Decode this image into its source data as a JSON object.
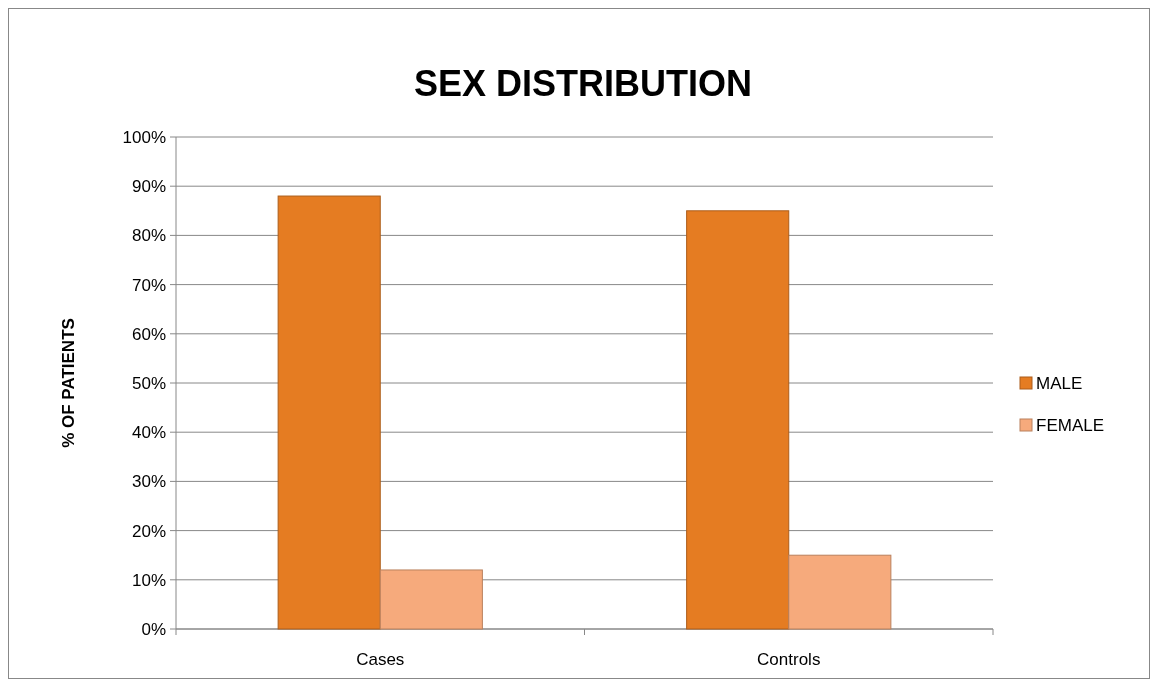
{
  "chart_data": {
    "type": "bar",
    "title": "SEX DISTRIBUTION",
    "ylabel": "% OF PATIENTS",
    "categories": [
      "Cases",
      "Controls"
    ],
    "series": [
      {
        "name": "MALE",
        "color": "#e57c22",
        "values": [
          88,
          85
        ]
      },
      {
        "name": "FEMALE",
        "color": "#f6aa7c",
        "values": [
          12,
          15
        ]
      }
    ],
    "ylim": [
      0,
      100
    ],
    "yticks": [
      {
        "value": 0,
        "label": "0%"
      },
      {
        "value": 10,
        "label": "10%"
      },
      {
        "value": 20,
        "label": "20%"
      },
      {
        "value": 30,
        "label": "30%"
      },
      {
        "value": 40,
        "label": "40%"
      },
      {
        "value": 50,
        "label": "50%"
      },
      {
        "value": 60,
        "label": "60%"
      },
      {
        "value": 70,
        "label": "70%"
      },
      {
        "value": 80,
        "label": "80%"
      },
      {
        "value": 90,
        "label": "90%"
      },
      {
        "value": 100,
        "label": "100%"
      }
    ],
    "grid": "y",
    "legend": "right"
  }
}
